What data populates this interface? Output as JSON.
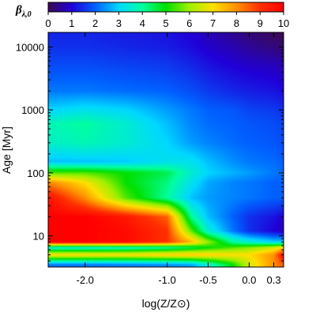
{
  "chart_data": {
    "type": "heatmap",
    "title": "",
    "xlabel": "log(Z/Z⊙)",
    "ylabel": "Age [Myr]",
    "x_scale": "linear",
    "y_scale": "log",
    "xlim": [
      -2.45,
      0.42
    ],
    "ylim": [
      3.2,
      17000
    ],
    "x_ticks": [
      {
        "value": -2.0,
        "label": "-2.0"
      },
      {
        "value": -1.0,
        "label": "-1.0"
      },
      {
        "value": -0.5,
        "label": "-0.5"
      },
      {
        "value": 0.0,
        "label": "0.0"
      },
      {
        "value": 0.3,
        "label": "0.3"
      }
    ],
    "y_ticks": [
      {
        "value": 10,
        "label": "10"
      },
      {
        "value": 100,
        "label": "100"
      },
      {
        "value": 1000,
        "label": "1000"
      },
      {
        "value": 10000,
        "label": "10000"
      }
    ],
    "colorbar": {
      "label_main": "β",
      "label_sub": "λ,0",
      "range": [
        0,
        10
      ],
      "ticks": [
        "0",
        "1",
        "2",
        "3",
        "4",
        "5",
        "6",
        "7",
        "8",
        "9",
        "10"
      ],
      "colors": [
        "#3a0a55",
        "#2000d8",
        "#0060ff",
        "#00d8ff",
        "#00ffa0",
        "#00e000",
        "#a0f000",
        "#ffe000",
        "#ff9000",
        "#ff3000",
        "#ff0000"
      ]
    },
    "value_notes": "beta value estimated per (age, metallicity)",
    "z": {
      "metallicities": [
        -2.4,
        -2.0,
        -1.5,
        -1.0,
        -0.7,
        -0.5,
        -0.2,
        0.0,
        0.3,
        0.4
      ],
      "ages": [
        3.5,
        5,
        6.5,
        8,
        12,
        20,
        40,
        70,
        100,
        150,
        300,
        600,
        1000,
        2000,
        5000,
        10000,
        15000
      ],
      "values": [
        [
          2.2,
          2.2,
          2.3,
          2.4,
          2.6,
          3.5,
          5.0,
          6.5,
          8.0,
          8.5
        ],
        [
          7.0,
          7.0,
          7.0,
          7.2,
          7.3,
          7.2,
          7.0,
          7.0,
          8.0,
          9.5
        ],
        [
          3.5,
          3.5,
          3.6,
          4.0,
          4.5,
          5.0,
          5.5,
          5.8,
          6.5,
          7.0
        ],
        [
          10.0,
          10.0,
          9.8,
          9.0,
          7.5,
          6.0,
          4.0,
          3.5,
          3.0,
          3.0
        ],
        [
          10.0,
          10.0,
          9.8,
          9.0,
          5.5,
          3.5,
          2.2,
          1.5,
          1.0,
          0.8
        ],
        [
          10.0,
          10.0,
          9.5,
          8.5,
          4.0,
          2.8,
          2.0,
          1.5,
          1.2,
          1.0
        ],
        [
          9.5,
          8.0,
          5.5,
          4.0,
          2.8,
          2.5,
          2.3,
          2.2,
          2.0,
          2.0
        ],
        [
          8.0,
          7.0,
          5.0,
          4.2,
          3.2,
          2.6,
          2.3,
          2.2,
          2.0,
          2.0
        ],
        [
          5.5,
          5.5,
          5.0,
          4.5,
          3.5,
          3.0,
          2.7,
          2.5,
          2.2,
          2.1
        ],
        [
          2.8,
          2.8,
          2.9,
          3.2,
          3.2,
          2.8,
          2.4,
          2.2,
          2.1,
          2.0
        ],
        [
          3.6,
          3.8,
          3.5,
          3.0,
          2.5,
          2.3,
          2.1,
          2.0,
          1.9,
          1.8
        ],
        [
          3.8,
          4.0,
          3.5,
          2.8,
          2.3,
          2.1,
          2.0,
          1.9,
          1.8,
          1.7
        ],
        [
          3.0,
          3.2,
          3.0,
          2.5,
          2.2,
          2.0,
          1.9,
          1.7,
          1.6,
          1.5
        ],
        [
          2.2,
          2.2,
          2.1,
          2.0,
          1.8,
          1.6,
          1.4,
          1.3,
          1.2,
          1.1
        ],
        [
          1.8,
          1.8,
          1.7,
          1.6,
          1.4,
          1.2,
          1.0,
          0.9,
          0.8,
          0.7
        ],
        [
          1.5,
          1.5,
          1.4,
          1.3,
          1.1,
          0.9,
          0.7,
          0.5,
          0.3,
          0.2
        ],
        [
          1.4,
          1.4,
          1.3,
          1.2,
          1.0,
          0.8,
          0.5,
          0.3,
          0.1,
          0.0
        ]
      ]
    }
  }
}
